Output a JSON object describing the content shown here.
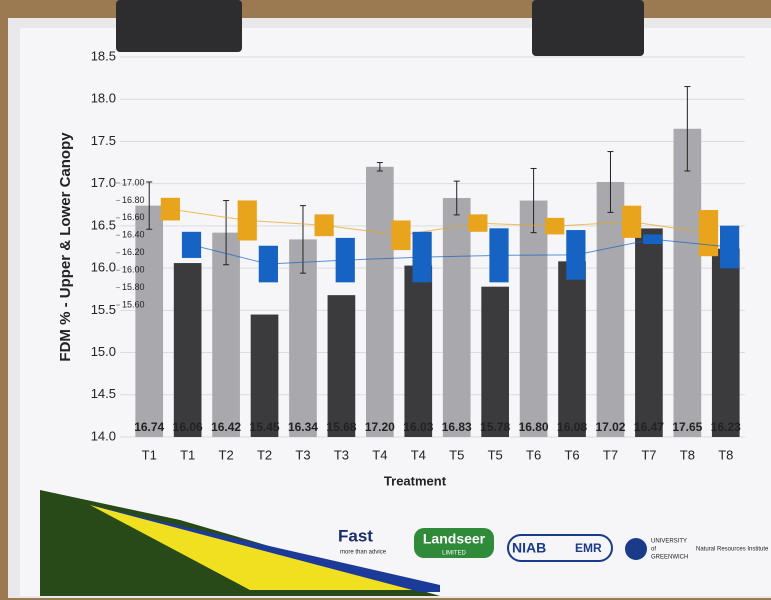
{
  "chart_data": {
    "type": "bar",
    "ylabel": "FDM % - Upper & Lower Canopy",
    "xlabel": "Treatment",
    "categories": [
      "T1",
      "T1",
      "T2",
      "T2",
      "T3",
      "T3",
      "T4",
      "T4",
      "T5",
      "T5",
      "T6",
      "T6",
      "T7",
      "T7",
      "T8",
      "T8"
    ],
    "values": [
      16.74,
      16.06,
      16.42,
      15.45,
      16.34,
      15.68,
      17.2,
      16.03,
      16.83,
      15.78,
      16.8,
      16.08,
      17.02,
      16.47,
      17.65,
      16.23
    ],
    "value_labels": [
      "16.74",
      "16.06",
      "16.42",
      "15.45",
      "16.34",
      "15.68",
      "17.20",
      "16.03",
      "16.83",
      "15.78",
      "16.80",
      "16.08",
      "17.02",
      "16.47",
      "17.65",
      "16.23"
    ],
    "errors": [
      0.28,
      null,
      0.38,
      null,
      0.4,
      null,
      0.05,
      null,
      0.2,
      null,
      0.38,
      null,
      0.36,
      null,
      0.5,
      null
    ],
    "colors": [
      "#a9a9ad",
      "#3b3b3d",
      "#a9a9ad",
      "#3b3b3d",
      "#a9a9ad",
      "#3b3b3d",
      "#a9a9ad",
      "#3b3b3d",
      "#a9a9ad",
      "#3b3b3d",
      "#a9a9ad",
      "#3b3b3d",
      "#a9a9ad",
      "#3b3b3d",
      "#a9a9ad",
      "#3b3b3d"
    ],
    "ylim": [
      14,
      18.5
    ],
    "yticks": [
      {
        "value": 14,
        "label": "14.0"
      },
      14.5,
      {
        "value": 15,
        "label": "15.0"
      },
      15.5,
      {
        "value": 16,
        "label": "16.0"
      },
      16.5,
      {
        "value": 17,
        "label": "17.0"
      },
      17.5,
      {
        "value": 18,
        "label": "18.0"
      },
      18.5
    ],
    "overlay": {
      "type": "candlestick",
      "y2lim": [
        15.6,
        17.0
      ],
      "y2ticks": [
        {
          "value": 15.6,
          "label": "15.60"
        },
        {
          "value": 15.8,
          "label": "15.80"
        },
        {
          "value": 16,
          "label": "16.00"
        },
        {
          "value": 16.2,
          "label": "16.20"
        },
        {
          "value": 16.4,
          "label": "16.40"
        },
        {
          "value": 16.6,
          "label": "16.60"
        },
        {
          "value": 16.8,
          "label": "16.80"
        },
        {
          "value": 17,
          "label": "17.00"
        }
      ],
      "series": [
        {
          "color": "#e8a41c",
          "boxes": [
            {
              "low": 16.57,
              "high": 16.83
            },
            {
              "low": 16.34,
              "high": 16.8
            },
            {
              "low": 16.39,
              "high": 16.64
            },
            {
              "low": 16.23,
              "high": 16.57
            },
            {
              "low": 16.44,
              "high": 16.64
            },
            {
              "low": 16.41,
              "high": 16.6
            },
            {
              "low": 16.37,
              "high": 16.74
            },
            {
              "low": 16.16,
              "high": 16.69
            }
          ]
        },
        {
          "color": "#1763c4",
          "boxes": [
            {
              "low": 16.14,
              "high": 16.44
            },
            {
              "low": 15.86,
              "high": 16.28
            },
            {
              "low": 15.86,
              "high": 16.37
            },
            {
              "low": 15.86,
              "high": 16.44
            },
            {
              "low": 15.86,
              "high": 16.48
            },
            {
              "low": 15.89,
              "high": 16.46
            },
            {
              "low": 16.3,
              "high": 16.41
            },
            {
              "low": 16.02,
              "high": 16.51
            }
          ]
        }
      ]
    }
  },
  "logos": [
    "Fast",
    "more than advice",
    "Landseer",
    "LIMITED",
    "NIAB",
    "EMR",
    "UNIVERSITY",
    "of",
    "GREENWICH",
    "Natural Resources Institute"
  ]
}
